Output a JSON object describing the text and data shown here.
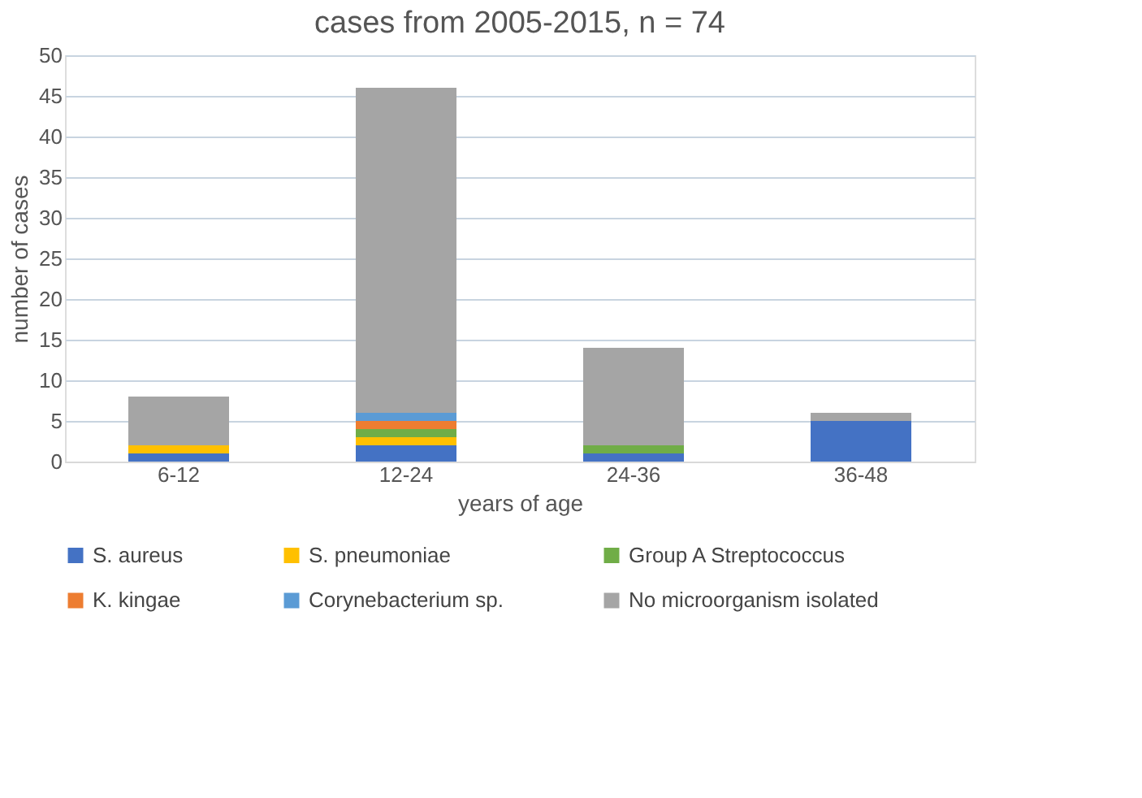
{
  "chart_data": {
    "type": "bar",
    "title": "cases from 2005-2015, n = 74",
    "xlabel": "years of age",
    "ylabel": "number of cases",
    "categories": [
      "6-12",
      "12-24",
      "24-36",
      "36-48"
    ],
    "series": [
      {
        "name": "S. aureus",
        "color": "#4472c4",
        "values": [
          1,
          2,
          1,
          5
        ]
      },
      {
        "name": "S. pneumoniae",
        "color": "#ffc000",
        "values": [
          1,
          1,
          0,
          0
        ]
      },
      {
        "name": "Group A Streptococcus",
        "color": "#70ad47",
        "values": [
          0,
          1,
          1,
          0
        ]
      },
      {
        "name": "K. kingae",
        "color": "#ed7d31",
        "values": [
          0,
          1,
          0,
          0
        ]
      },
      {
        "name": "Corynebacterium sp.",
        "color": "#5b9bd5",
        "values": [
          0,
          1,
          0,
          0
        ]
      },
      {
        "name": "No microorganism isolated",
        "color": "#a5a5a5",
        "values": [
          6,
          40,
          12,
          1
        ]
      }
    ],
    "stacked": true,
    "ylim": [
      0,
      50
    ],
    "yticks": [
      0,
      5,
      10,
      15,
      20,
      25,
      30,
      35,
      40,
      45,
      50
    ],
    "grid": "y",
    "legend": "bottom"
  }
}
